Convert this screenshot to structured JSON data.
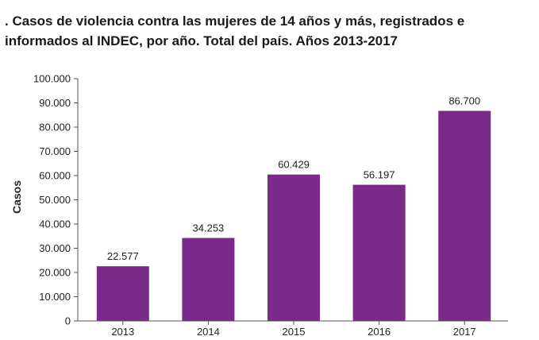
{
  "chart_data": {
    "type": "bar",
    "title": ". Casos de violencia contra las mujeres de 14 años y más, registrados e\ninformados al INDEC, por año. Total del país. Años 2013-2017",
    "xlabel": "",
    "ylabel": "Casos",
    "categories": [
      "2013",
      "2014",
      "2015",
      "2016",
      "2017"
    ],
    "values": [
      22577,
      34253,
      60429,
      56197,
      86700
    ],
    "value_labels": [
      "22.577",
      "34.253",
      "60.429",
      "56.197",
      "86.700"
    ],
    "ylim": [
      0,
      100000
    ],
    "yticks": [
      0,
      10000,
      20000,
      30000,
      40000,
      50000,
      60000,
      70000,
      80000,
      90000,
      100000
    ],
    "ytick_labels": [
      "0",
      "10.000",
      "20.000",
      "30.000",
      "40.000",
      "50.000",
      "60.000",
      "70.000",
      "80.000",
      "90.000",
      "100.000"
    ],
    "grid": false,
    "legend": "none",
    "bar_color": "#7a2b8a",
    "axis_color": "#555555"
  }
}
